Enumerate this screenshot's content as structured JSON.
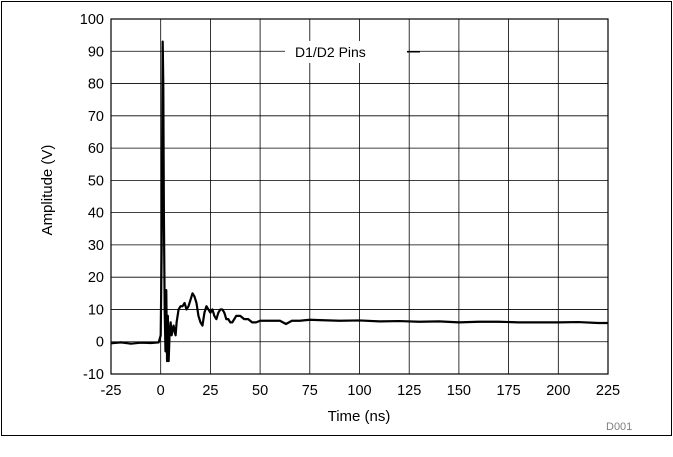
{
  "chart_data": {
    "type": "line",
    "title": "",
    "xlabel": "Time (ns)",
    "ylabel": "Amplitude (V)",
    "xlim": [
      -25,
      225
    ],
    "ylim": [
      -10,
      100
    ],
    "xticks": [
      -25,
      0,
      25,
      50,
      75,
      100,
      125,
      150,
      175,
      200,
      225
    ],
    "yticks": [
      -10,
      0,
      10,
      20,
      30,
      40,
      50,
      60,
      70,
      80,
      90,
      100
    ],
    "grid": true,
    "annotation": "D1/D2 Pins",
    "figure_code": "D001",
    "series": [
      {
        "name": "",
        "color": "#000000",
        "x": [
          -25,
          -20,
          -15,
          -10,
          -5,
          -1,
          0,
          0.5,
          0.8,
          1.0,
          1.3,
          1.6,
          2.0,
          2.4,
          2.8,
          3.2,
          3.6,
          4.0,
          4.5,
          5,
          5.5,
          6,
          6.5,
          7,
          7.5,
          8,
          9,
          10,
          11,
          12,
          13,
          14,
          15,
          16,
          17,
          18,
          19,
          20,
          21,
          22,
          23,
          24,
          25,
          26,
          27,
          28,
          29,
          30,
          31,
          32,
          33,
          34,
          35,
          36,
          37,
          38,
          39,
          40,
          42,
          44,
          46,
          48,
          50,
          55,
          60,
          63,
          66,
          70,
          75,
          80,
          90,
          100,
          110,
          120,
          130,
          140,
          150,
          160,
          170,
          180,
          190,
          200,
          210,
          220,
          225
        ],
        "y": [
          -0.5,
          -0.2,
          -0.6,
          -0.3,
          -0.4,
          -0.2,
          2,
          30,
          70,
          93,
          80,
          40,
          10,
          -3,
          16,
          -6,
          8,
          -6,
          3,
          6,
          2,
          4,
          5,
          3,
          2,
          6,
          10,
          11,
          11,
          12,
          10,
          11,
          13,
          15,
          14,
          12,
          8,
          6,
          5,
          9,
          11,
          10,
          9,
          10,
          8,
          7,
          9,
          10,
          10,
          9,
          7,
          7,
          6,
          6,
          7,
          8,
          8,
          8,
          7,
          7,
          6,
          6,
          6.5,
          6.5,
          6.5,
          5.5,
          6.5,
          6.5,
          6.8,
          6.7,
          6.5,
          6.6,
          6.3,
          6.4,
          6.2,
          6.3,
          6.0,
          6.2,
          6.2,
          6.0,
          6.0,
          6.0,
          6.1,
          5.8,
          5.8
        ]
      }
    ]
  }
}
